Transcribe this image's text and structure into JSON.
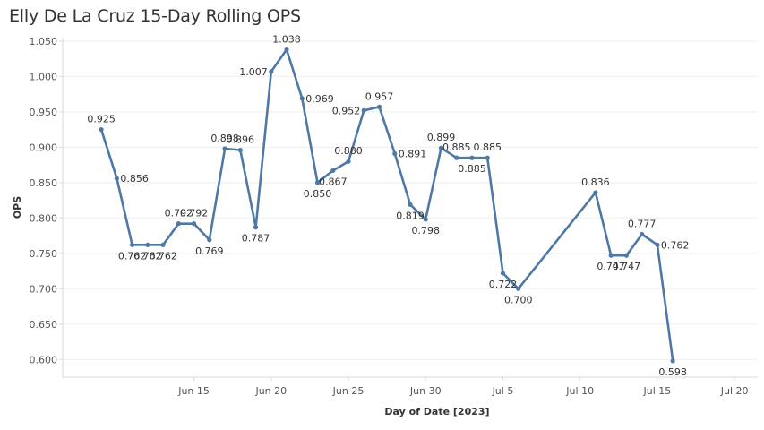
{
  "chart_data": {
    "type": "line",
    "title": "Elly De La Cruz 15-Day Rolling OPS",
    "xlabel": "Day of Date [2023]",
    "ylabel": "OPS",
    "ylim": [
      0.575,
      1.055
    ],
    "yticks": [
      "1.050",
      "1.000",
      "0.950",
      "0.900",
      "0.850",
      "0.800",
      "0.750",
      "0.700",
      "0.650",
      "0.600"
    ],
    "ytick_values": [
      1.05,
      1.0,
      0.95,
      0.9,
      0.85,
      0.8,
      0.75,
      0.7,
      0.65,
      0.6
    ],
    "xlim_day_of_june": [
      6.5,
      51.5
    ],
    "xticks": [
      {
        "label": "Jun 15",
        "day": 15
      },
      {
        "label": "Jun 20",
        "day": 20
      },
      {
        "label": "Jun 25",
        "day": 25
      },
      {
        "label": "Jun 30",
        "day": 30
      },
      {
        "label": "Jul 5",
        "day": 35
      },
      {
        "label": "Jul 10",
        "day": 40
      },
      {
        "label": "Jul 15",
        "day": 45
      },
      {
        "label": "Jul 20",
        "day": 50
      }
    ],
    "grid": "horizontal",
    "color": "#4e79a7",
    "series": [
      {
        "name": "15-Day Rolling OPS",
        "points": [
          {
            "day": 9,
            "value": 0.925,
            "label": "0.925",
            "pos": "above"
          },
          {
            "day": 10,
            "value": 0.856,
            "label": "0.856",
            "pos": "right"
          },
          {
            "day": 11,
            "value": 0.762,
            "label": "0.762",
            "pos": "below"
          },
          {
            "day": 12,
            "value": 0.762,
            "label": "0.762",
            "pos": "below"
          },
          {
            "day": 13,
            "value": 0.762,
            "label": "0.762",
            "pos": "below"
          },
          {
            "day": 14,
            "value": 0.792,
            "label": "0.792",
            "pos": "above"
          },
          {
            "day": 15,
            "value": 0.792,
            "label": "0.792",
            "pos": "above"
          },
          {
            "day": 16,
            "value": 0.769,
            "label": "0.769",
            "pos": "below"
          },
          {
            "day": 17,
            "value": 0.898,
            "label": "0.898",
            "pos": "above"
          },
          {
            "day": 18,
            "value": 0.896,
            "label": "0.896",
            "pos": "above"
          },
          {
            "day": 19,
            "value": 0.787,
            "label": "0.787",
            "pos": "below"
          },
          {
            "day": 20,
            "value": 1.007,
            "label": "1.007",
            "pos": "left"
          },
          {
            "day": 21,
            "value": 1.038,
            "label": "1.038",
            "pos": "above"
          },
          {
            "day": 22,
            "value": 0.969,
            "label": "0.969",
            "pos": "right"
          },
          {
            "day": 23,
            "value": 0.85,
            "label": "0.850",
            "pos": "below"
          },
          {
            "day": 24,
            "value": 0.867,
            "label": "0.867",
            "pos": "below"
          },
          {
            "day": 25,
            "value": 0.88,
            "label": "0.880",
            "pos": "above"
          },
          {
            "day": 26,
            "value": 0.952,
            "label": "0.952",
            "pos": "left"
          },
          {
            "day": 27,
            "value": 0.957,
            "label": "0.957",
            "pos": "above"
          },
          {
            "day": 28,
            "value": 0.891,
            "label": "0.891",
            "pos": "right"
          },
          {
            "day": 29,
            "value": 0.819,
            "label": "0.819",
            "pos": "below"
          },
          {
            "day": 30,
            "value": 0.798,
            "label": "0.798",
            "pos": "below"
          },
          {
            "day": 31,
            "value": 0.899,
            "label": "0.899",
            "pos": "above"
          },
          {
            "day": 32,
            "value": 0.885,
            "label": "0.885",
            "pos": "above"
          },
          {
            "day": 33,
            "value": 0.885,
            "label": "0.885",
            "pos": "below"
          },
          {
            "day": 34,
            "value": 0.885,
            "label": "0.885",
            "pos": "above"
          },
          {
            "day": 35,
            "value": 0.722,
            "label": "0.722",
            "pos": "below"
          },
          {
            "day": 36,
            "value": 0.7,
            "label": "0.700",
            "pos": "below"
          },
          {
            "day": 41,
            "value": 0.836,
            "label": "0.836",
            "pos": "above"
          },
          {
            "day": 42,
            "value": 0.747,
            "label": "0.747",
            "pos": "below"
          },
          {
            "day": 43,
            "value": 0.747,
            "label": "0.747",
            "pos": "below"
          },
          {
            "day": 44,
            "value": 0.777,
            "label": "0.777",
            "pos": "above"
          },
          {
            "day": 45,
            "value": 0.762,
            "label": "0.762",
            "pos": "right"
          },
          {
            "day": 46,
            "value": 0.598,
            "label": "0.598",
            "pos": "below"
          }
        ]
      }
    ]
  }
}
